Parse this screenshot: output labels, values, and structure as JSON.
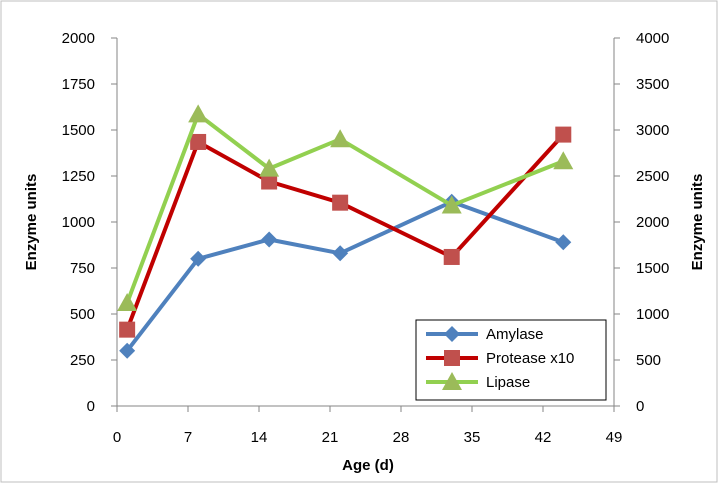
{
  "chart_data": {
    "type": "line",
    "xlabel": "Age (d)",
    "ylabel": "Enzyme units",
    "y2label": "Enzyme units",
    "xlim": [
      0,
      49
    ],
    "xticks": [
      "0",
      "7",
      "14",
      "21",
      "28",
      "35",
      "42",
      "49"
    ],
    "xtick_values": [
      0,
      7,
      14,
      21,
      28,
      35,
      42,
      49
    ],
    "ylim": [
      0,
      2000
    ],
    "yticks": [
      "0",
      "250",
      "500",
      "750",
      "1000",
      "1250",
      "1500",
      "1750",
      "2000"
    ],
    "ytick_values": [
      0,
      250,
      500,
      750,
      1000,
      1250,
      1500,
      1750,
      2000
    ],
    "y2lim": [
      0,
      4000
    ],
    "y2ticks": [
      "0",
      "500",
      "1000",
      "1500",
      "2000",
      "2500",
      "3000",
      "3500",
      "4000"
    ],
    "y2tick_values": [
      0,
      500,
      1000,
      1500,
      2000,
      2500,
      3000,
      3500,
      4000
    ],
    "grid": false,
    "legend_position": "bottom-right",
    "series": [
      {
        "name": "Amylase",
        "axis": "left",
        "color": "#4F81BD",
        "marker": "diamond",
        "x": [
          1,
          8,
          15,
          22,
          33,
          44
        ],
        "y": [
          300,
          800,
          905,
          830,
          1110,
          890
        ]
      },
      {
        "name": "Protease x10",
        "axis": "left",
        "color": "#C00000",
        "marker_color": "#C0504D",
        "marker": "square",
        "x": [
          1,
          8,
          15,
          22,
          33,
          44
        ],
        "y": [
          415,
          1435,
          1220,
          1105,
          810,
          1475
        ]
      },
      {
        "name": "Lipase",
        "axis": "right",
        "color": "#92D050",
        "marker_color": "#9BBB59",
        "marker": "triangle",
        "x": [
          1,
          8,
          15,
          22,
          33,
          44
        ],
        "y": [
          1120,
          3170,
          2580,
          2900,
          2180,
          2660
        ]
      }
    ]
  }
}
